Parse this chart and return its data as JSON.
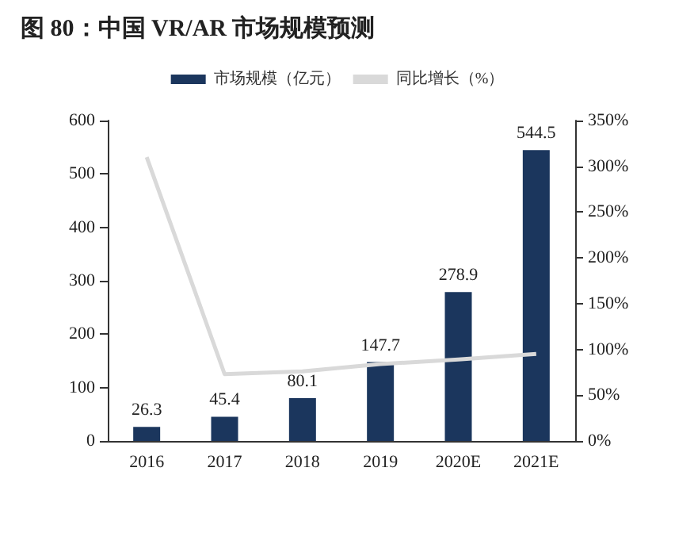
{
  "chart_data": {
    "type": "bar",
    "title": "图 80：中国 VR/AR 市场规模预测",
    "categories": [
      "2016",
      "2017",
      "2018",
      "2019",
      "2020E",
      "2021E"
    ],
    "series": [
      {
        "name": "市场规模（亿元）",
        "color": "#1b365d",
        "values": [
          26.3,
          45.4,
          80.1,
          147.7,
          278.9,
          544.5
        ],
        "value_labels": [
          "26.3",
          "45.4",
          "80.1",
          "147.7",
          "278.9",
          "544.5"
        ]
      },
      {
        "name": "同比增长（%）",
        "type": "line",
        "axis": "y2",
        "color": "#d9d9d9",
        "values": [
          310,
          73,
          76,
          84,
          89,
          95
        ]
      }
    ],
    "ylim": [
      0,
      600
    ],
    "yticks": [
      0,
      100,
      200,
      300,
      400,
      500,
      600
    ],
    "y2lim": [
      0,
      350
    ],
    "y2ticks": [
      {
        "value": 0,
        "label": "0%"
      },
      {
        "value": 50,
        "label": "50%"
      },
      {
        "value": 100,
        "label": "100%"
      },
      {
        "value": 150,
        "label": "150%"
      },
      {
        "value": 200,
        "label": "200%"
      },
      {
        "value": 250,
        "label": "250%"
      },
      {
        "value": 300,
        "label": "300%"
      },
      {
        "value": 350,
        "label": "350%"
      }
    ],
    "legend": "top",
    "grid": false,
    "marker": "none"
  }
}
